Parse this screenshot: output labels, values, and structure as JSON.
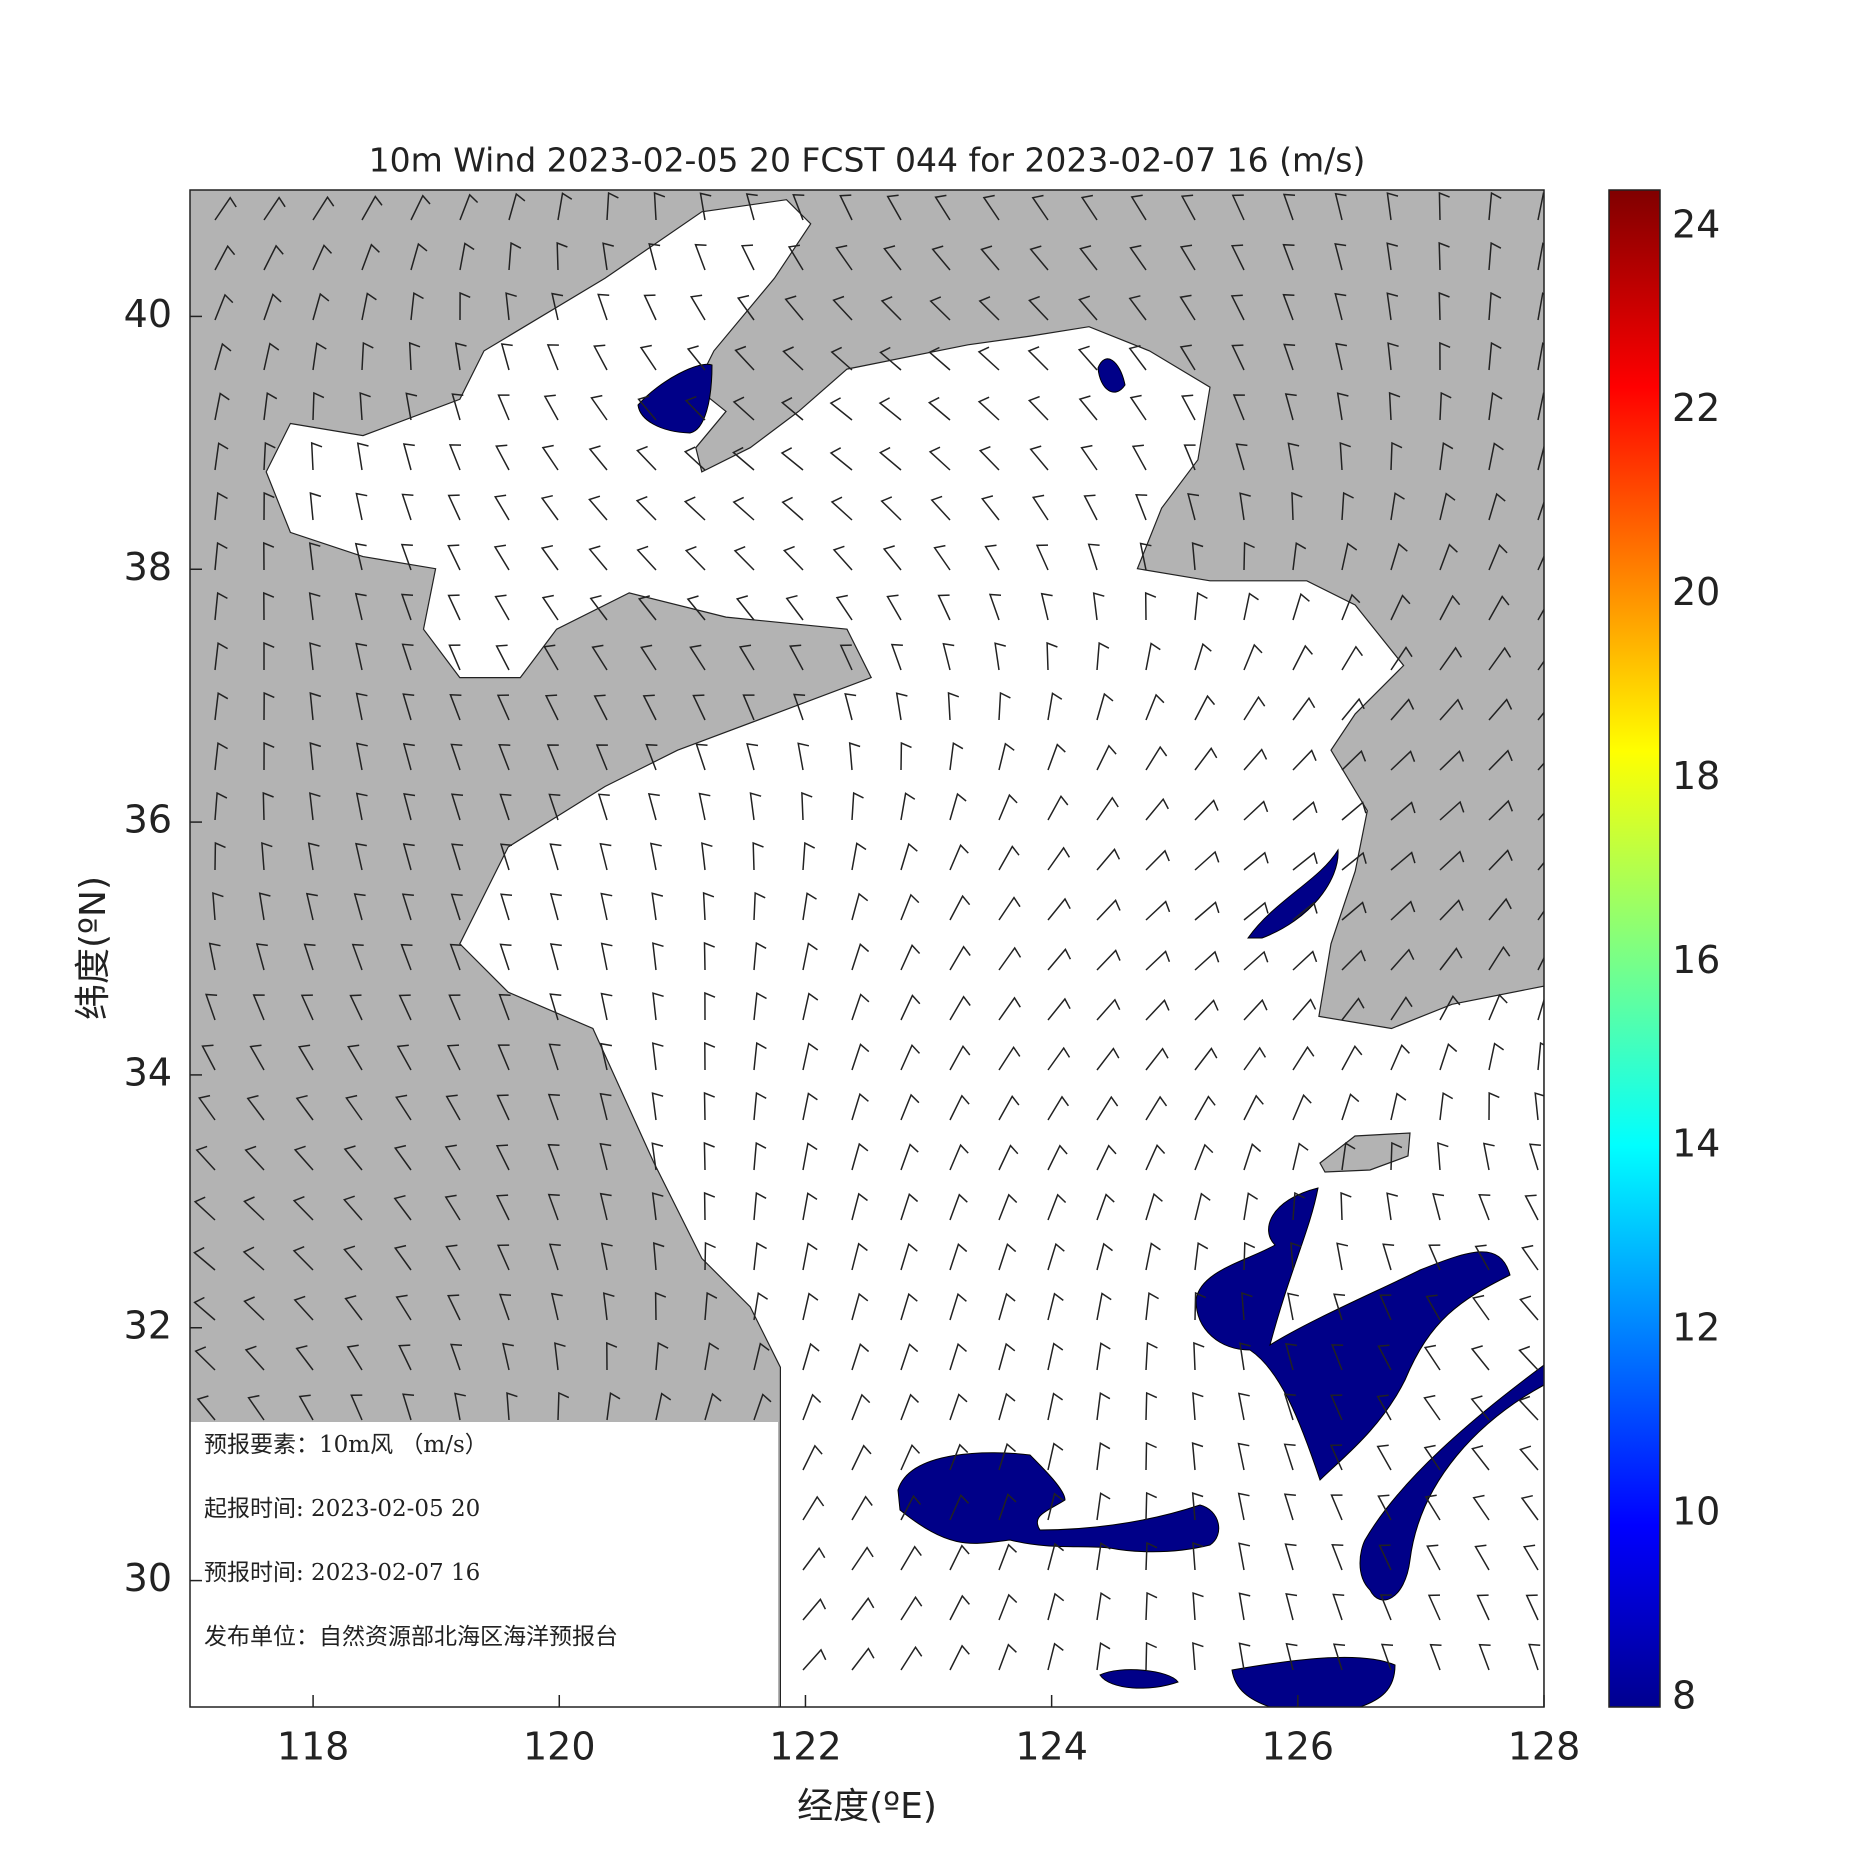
{
  "title": "10m Wind 2023-02-05 20 FCST 044 for 2023-02-07 16 (m/s)",
  "x_axis": {
    "label": "经度(ºE)",
    "lim": [
      117,
      128
    ],
    "ticks": [
      118,
      120,
      122,
      124,
      126,
      128
    ]
  },
  "y_axis": {
    "label": "纬度(ºN)",
    "lim": [
      29,
      41
    ],
    "ticks": [
      30,
      32,
      34,
      36,
      38,
      40
    ]
  },
  "colorbar": {
    "lim": [
      7.9,
      24.4
    ],
    "ticks": [
      8,
      10,
      12,
      14,
      16,
      18,
      20,
      22,
      24
    ]
  },
  "info": [
    "预报要素：10m风 （m/s）",
    "起报时间: 2023-02-05 20",
    "预报时间: 2023-02-07 16",
    "发布单位：自然资源部北海区海洋预报台"
  ]
}
